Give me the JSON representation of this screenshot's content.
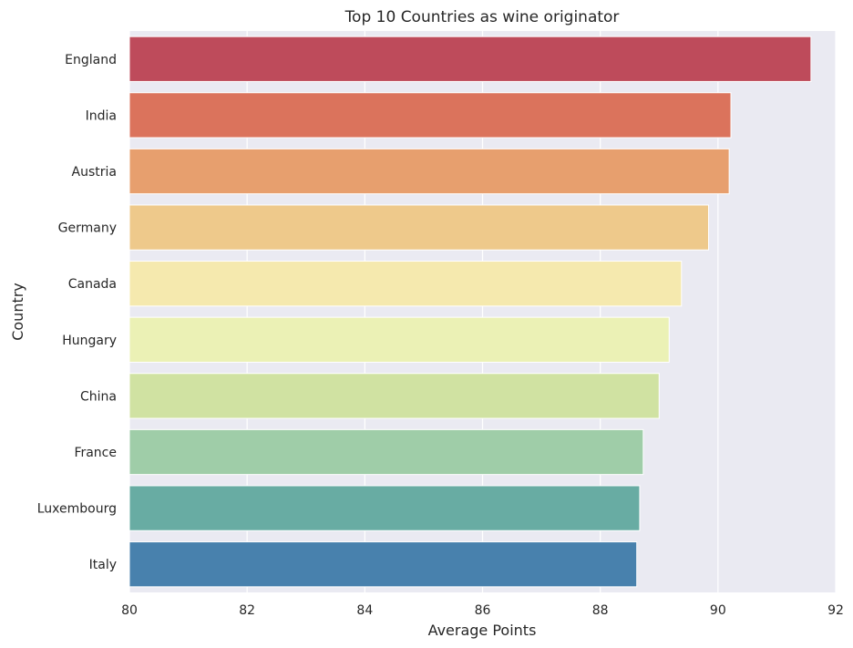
{
  "chart_data": {
    "type": "bar",
    "orientation": "horizontal",
    "title": "Top 10 Countries as wine originator",
    "xlabel": "Average Points",
    "ylabel": "Country",
    "xlim": [
      80,
      92
    ],
    "xticks": [
      "80",
      "82",
      "84",
      "86",
      "88",
      "90",
      "92"
    ],
    "grid": true,
    "legend": "none",
    "categories": [
      "England",
      "India",
      "Austria",
      "Germany",
      "Canada",
      "Hungary",
      "China",
      "France",
      "Luxembourg",
      "Italy"
    ],
    "values": [
      91.58,
      90.22,
      90.19,
      89.84,
      89.38,
      89.17,
      89.0,
      88.73,
      88.67,
      88.62
    ],
    "colors": [
      "#be4b5b",
      "#db735c",
      "#e79f6e",
      "#eec98b",
      "#f5e9ae",
      "#ebf1b5",
      "#d0e2a2",
      "#9fcda8",
      "#68aca3",
      "#4881ad"
    ]
  }
}
